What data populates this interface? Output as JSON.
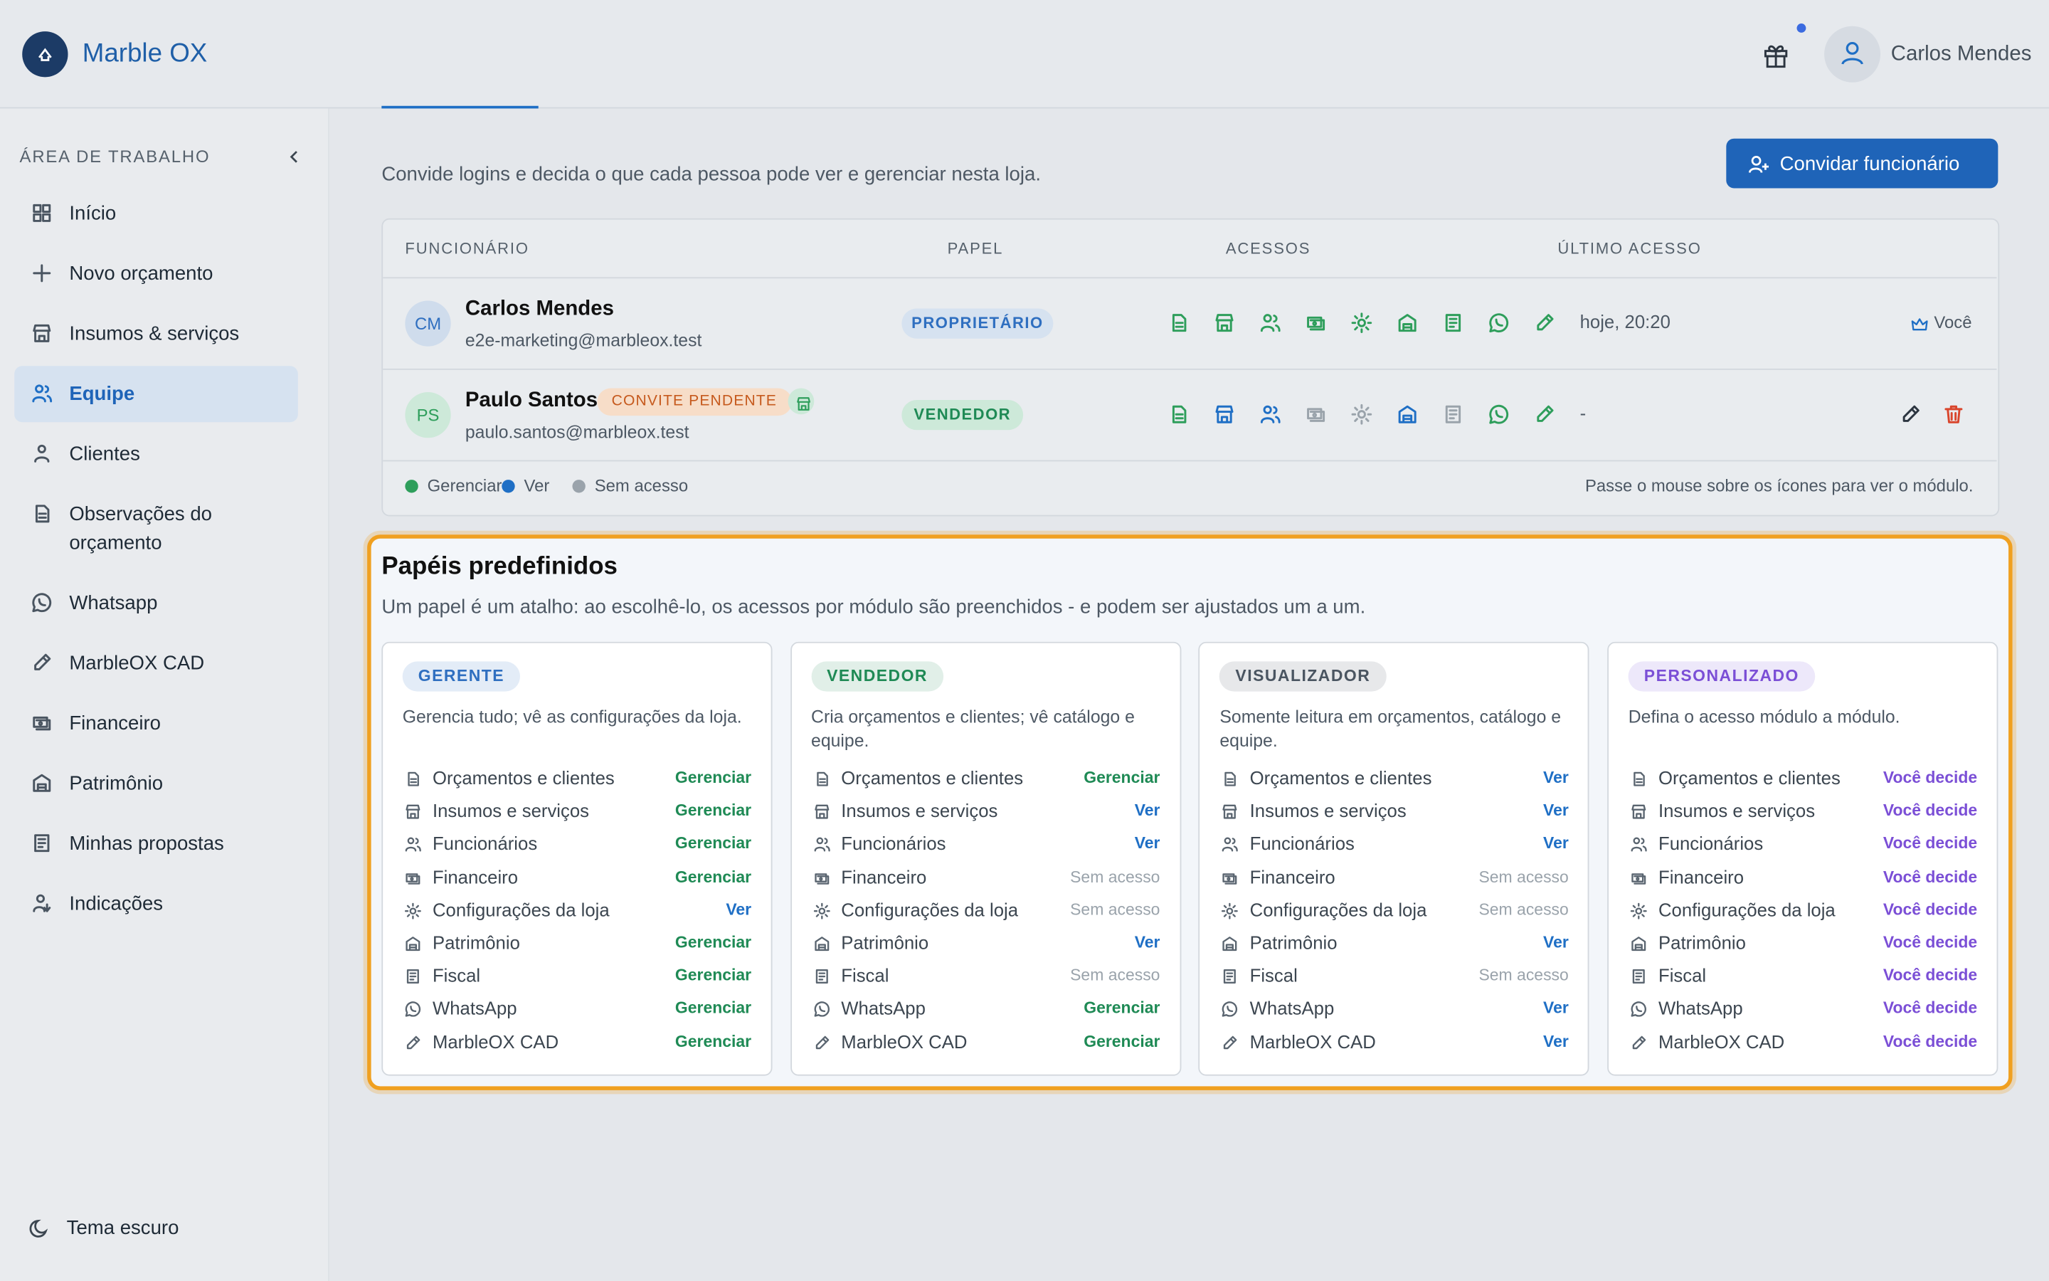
{
  "header": {
    "brand": "Marble OX",
    "user": "Carlos Mendes"
  },
  "sidebar": {
    "section": "ÁREA DE TRABALHO",
    "items": [
      "Início",
      "Novo orçamento",
      "Insumos & serviços",
      "Equipe",
      "Clientes",
      "Observações do orçamento",
      "Whatsapp",
      "MarbleOX CAD",
      "Financeiro",
      "Patrimônio",
      "Minhas propostas",
      "Indicações"
    ],
    "active": "Equipe",
    "theme": "Tema escuro"
  },
  "intro": "Convide logins e decida o que cada pessoa pode ver e gerenciar nesta loja.",
  "invite_button": "Convidar funcionário",
  "table": {
    "headers": [
      "FUNCIONÁRIO",
      "PAPEL",
      "ACESSOS",
      "ÚLTIMO ACESSO"
    ],
    "rows": [
      {
        "initials": "CM",
        "name": "Carlos Mendes",
        "email": "e2e-marketing@marbleox.test",
        "role": "PROPRIETÁRIO",
        "last": "hoje, 20:20",
        "tag": "Você",
        "access": [
          "Gerenciar",
          "Gerenciar",
          "Gerenciar",
          "Gerenciar",
          "Gerenciar",
          "Gerenciar",
          "Gerenciar",
          "Gerenciar",
          "Gerenciar"
        ]
      },
      {
        "initials": "PS",
        "name": "Paulo Santos",
        "badge": "CONVITE PENDENTE",
        "email": "paulo.santos@marbleox.test",
        "role": "VENDEDOR",
        "last": "-",
        "access": [
          "Gerenciar",
          "Ver",
          "Ver",
          "Sem acesso",
          "Sem acesso",
          "Ver",
          "Sem acesso",
          "Gerenciar",
          "Gerenciar"
        ]
      }
    ]
  },
  "legend": {
    "items": [
      {
        "label": "Gerenciar",
        "color": "#2e9e5b"
      },
      {
        "label": "Ver",
        "color": "#1f6fc5"
      },
      {
        "label": "Sem acesso",
        "color": "#9aa3ab"
      }
    ],
    "hint": "Passe o mouse sobre os ícones para ver o módulo."
  },
  "roles": {
    "title": "Papéis predefinidos",
    "subtitle": "Um papel é um atalho: ao escolhê-lo, os acessos por módulo são preenchidos - e podem ser ajustados um a um.",
    "modules": [
      "Orçamentos e clientes",
      "Insumos e serviços",
      "Funcionários",
      "Financeiro",
      "Configurações da loja",
      "Patrimônio",
      "Fiscal",
      "WhatsApp",
      "MarbleOX CAD"
    ],
    "cards": [
      {
        "name": "GERENTE",
        "color": "#2f6fc0",
        "desc": "Gerencia tudo; vê as configurações da loja.",
        "levels": [
          "Gerenciar",
          "Gerenciar",
          "Gerenciar",
          "Gerenciar",
          "Ver",
          "Gerenciar",
          "Gerenciar",
          "Gerenciar",
          "Gerenciar"
        ]
      },
      {
        "name": "VENDEDOR",
        "color": "#1f8a55",
        "desc": "Cria orçamentos e clientes; vê catálogo e equipe.",
        "levels": [
          "Gerenciar",
          "Ver",
          "Ver",
          "Sem acesso",
          "Sem acesso",
          "Ver",
          "Sem acesso",
          "Gerenciar",
          "Gerenciar"
        ]
      },
      {
        "name": "VISUALIZADOR",
        "color": "#4a5561",
        "desc": "Somente leitura em orçamentos, catálogo e equipe.",
        "levels": [
          "Ver",
          "Ver",
          "Ver",
          "Sem acesso",
          "Sem acesso",
          "Ver",
          "Sem acesso",
          "Ver",
          "Ver"
        ]
      },
      {
        "name": "PERSONALIZADO",
        "color": "#7b4fd6",
        "desc": "Defina o acesso módulo a módulo.",
        "levels": [
          "Você decide",
          "Você decide",
          "Você decide",
          "Você decide",
          "Você decide",
          "Você decide",
          "Você decide",
          "Você decide",
          "Você decide"
        ]
      }
    ]
  }
}
